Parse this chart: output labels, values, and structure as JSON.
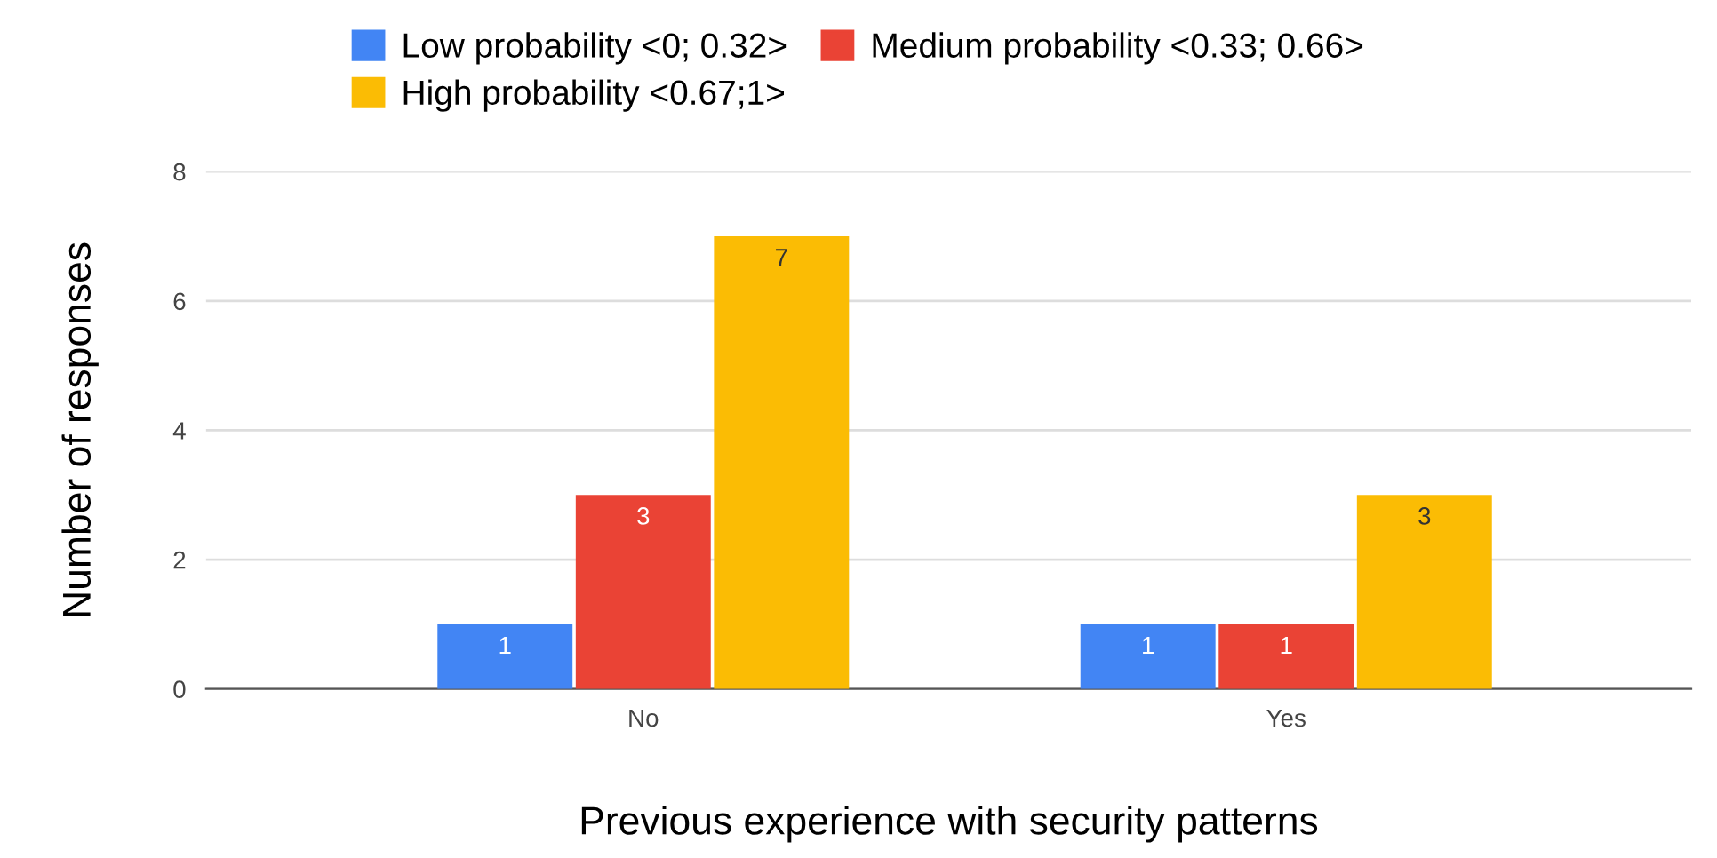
{
  "chart_data": {
    "type": "bar",
    "xlabel": "Previous experience with security patterns",
    "ylabel": "Number of responses",
    "categories": [
      "No",
      "Yes"
    ],
    "series": [
      {
        "name": "Low probability <0; 0.32>",
        "color": "#4285f4",
        "values": [
          1,
          1
        ]
      },
      {
        "name": "Medium probability <0.33; 0.66>",
        "color": "#ea4335",
        "values": [
          3,
          1
        ]
      },
      {
        "name": "High probability <0.67;1>",
        "color": "#fbbc04",
        "values": [
          7,
          3
        ]
      }
    ],
    "ylim": [
      0,
      8
    ],
    "yticks": [
      0,
      2,
      4,
      6,
      8
    ],
    "grid": "y",
    "legend": "top",
    "data_labels": true
  }
}
